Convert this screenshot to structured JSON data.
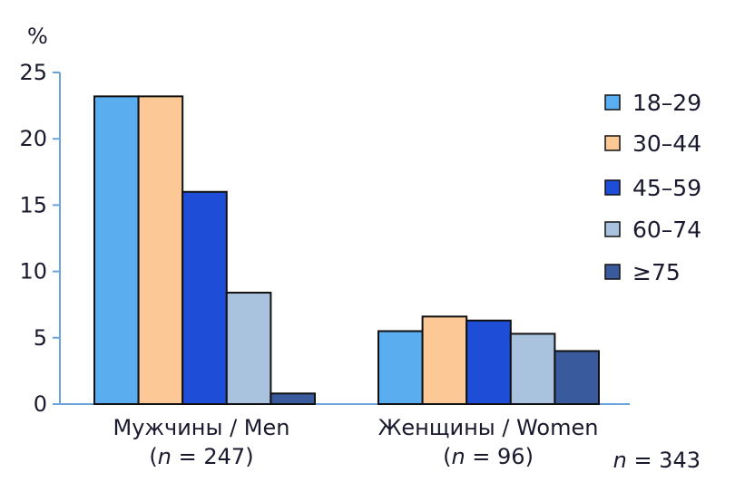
{
  "chart_data": {
    "type": "bar",
    "ylabel": "%",
    "ylim": [
      0,
      25
    ],
    "yticks": [
      0,
      5,
      10,
      15,
      20,
      25
    ],
    "grid": false,
    "legend_position": "right",
    "categories": [
      {
        "label": "Мужчины / Men",
        "n_prefix": "(",
        "n_italic": "n",
        "n_suffix": " = 247)"
      },
      {
        "label": "Женщины / Women",
        "n_prefix": "(",
        "n_italic": "n",
        "n_suffix": " = 96)"
      }
    ],
    "series": [
      {
        "name": "18–29",
        "color": "#5aaef0",
        "values": [
          23.2,
          5.5
        ]
      },
      {
        "name": "30–44",
        "color": "#fcc996",
        "values": [
          23.2,
          6.6
        ]
      },
      {
        "name": "45–59",
        "color": "#1e4ed8",
        "values": [
          16.0,
          6.3
        ]
      },
      {
        "name": "60–74",
        "color": "#a9c2de",
        "values": [
          8.4,
          5.3
        ]
      },
      {
        "name": "≥75",
        "color": "#3a5a9e",
        "values": [
          0.8,
          4.0
        ]
      }
    ],
    "total_note": {
      "italic": "n",
      "rest": " = 343"
    }
  }
}
